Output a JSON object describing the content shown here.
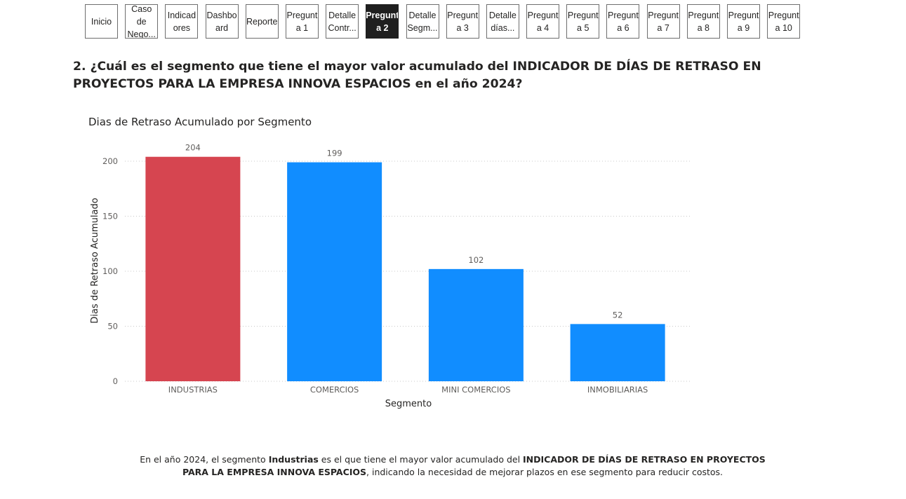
{
  "nav": {
    "buttons": [
      {
        "label": "Inicio",
        "active": false
      },
      {
        "label": "Caso de\nNego...",
        "active": false
      },
      {
        "label": "Indicad\nores",
        "active": false
      },
      {
        "label": "Dashbo\nard",
        "active": false
      },
      {
        "label": "Reporte",
        "active": false
      },
      {
        "label": "Pregunt\na 1",
        "active": false
      },
      {
        "label": "Detalle\nContr...",
        "active": false
      },
      {
        "label": "Pregunt\na 2",
        "active": true
      },
      {
        "label": "Detalle\nSegm...",
        "active": false
      },
      {
        "label": "Pregunt\na 3",
        "active": false
      },
      {
        "label": "Detalle\ndías...",
        "active": false
      },
      {
        "label": "Pregunt\na 4",
        "active": false
      },
      {
        "label": "Pregunt\na 5",
        "active": false
      },
      {
        "label": "Pregunt\na 6",
        "active": false
      },
      {
        "label": "Pregunt\na 7",
        "active": false
      },
      {
        "label": "Pregunt\na 8",
        "active": false
      },
      {
        "label": "Pregunt\na 9",
        "active": false
      },
      {
        "label": "Pregunt\na 10",
        "active": false
      }
    ]
  },
  "question": "2. ¿Cuál es el segmento que tiene el mayor valor acumulado del INDICADOR DE DÍAS DE RETRASO EN PROYECTOS PARA LA EMPRESA INNOVA ESPACIOS en el año 2024?",
  "chart_data": {
    "type": "bar",
    "title": "Dias de Retraso Acumulado por Segmento",
    "xlabel": "Segmento",
    "ylabel": "Dias de Retraso Acumulado",
    "categories": [
      "INDUSTRIAS",
      "COMERCIOS",
      "MINI COMERCIOS",
      "INMOBILIARIAS"
    ],
    "values": [
      204,
      199,
      102,
      52
    ],
    "bar_colors": [
      "#D64550",
      "#118DFF",
      "#118DFF",
      "#118DFF"
    ],
    "ylim": [
      0,
      200
    ],
    "yticks": [
      0,
      50,
      100,
      150,
      200
    ],
    "grid": true,
    "data_labels": true
  },
  "conclusion": {
    "p1": "En el año 2024, el segmento ",
    "b1": "Industrias",
    "p2": " es el que tiene el mayor valor acumulado del ",
    "b2": "INDICADOR DE DÍAS DE RETRASO EN PROYECTOS PARA LA EMPRESA INNOVA ESPACIOS",
    "p3": ", indicando la necesidad de mejorar plazos en ese segmento para reducir costos."
  },
  "colors": {
    "active_nav": "#1f1f1f",
    "highlight_bar": "#D64550",
    "default_bar": "#118DFF",
    "text": "#252423"
  }
}
